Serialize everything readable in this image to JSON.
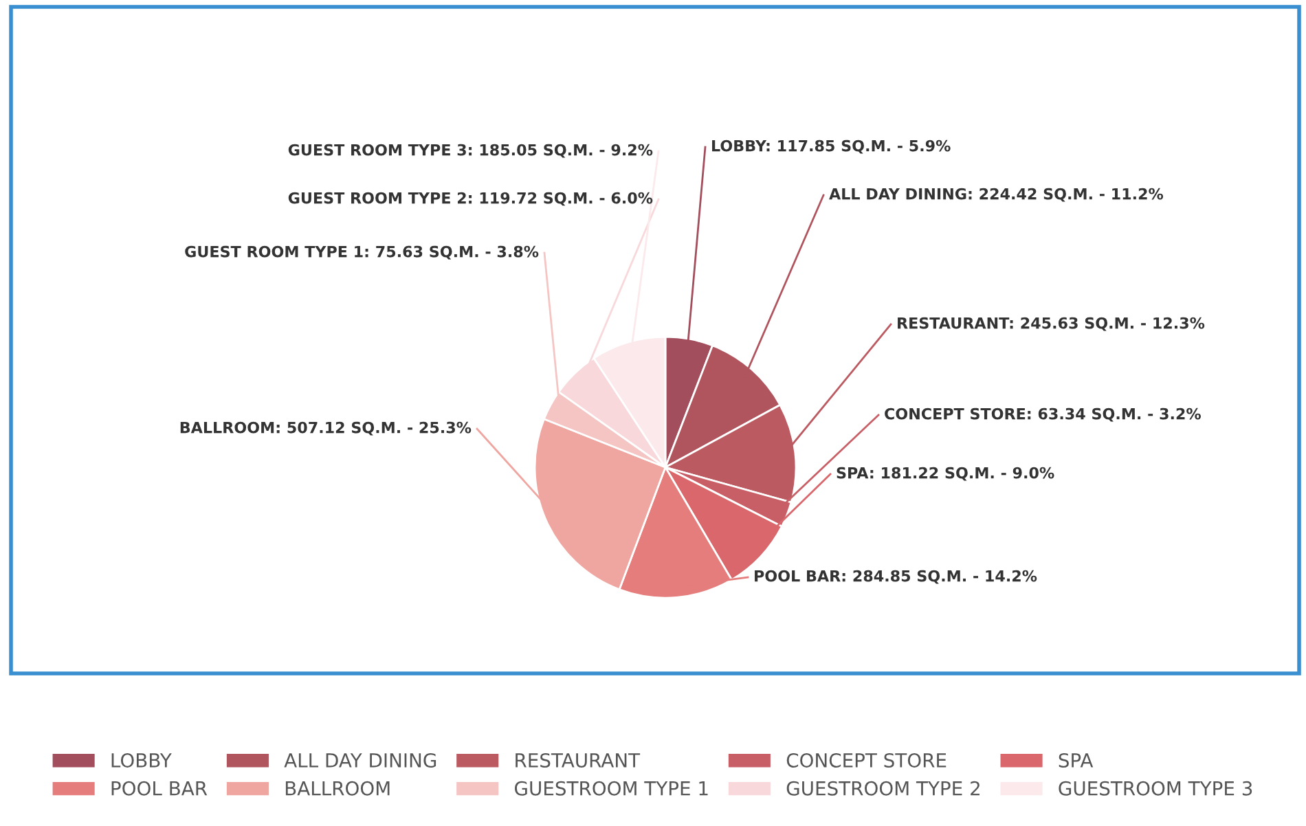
{
  "chart_data": {
    "type": "pie",
    "categories": [
      "LOBBY",
      "ALL DAY DINING",
      "RESTAURANT",
      "CONCEPT STORE",
      "SPA",
      "POOL BAR",
      "BALLROOM",
      "GUESTROOM TYPE 1",
      "GUESTROOM TYPE 2",
      "GUESTROOM TYPE 3"
    ],
    "values": [
      117.85,
      224.42,
      245.63,
      63.34,
      181.22,
      284.85,
      507.12,
      75.63,
      119.72,
      185.05
    ],
    "colors": [
      "#a34e5c",
      "#b0545e",
      "#bc5a62",
      "#c95f66",
      "#d9676b",
      "#e47d7c",
      "#efa5a0",
      "#f5c5c4",
      "#f8d8da",
      "#fbe9ec"
    ],
    "value_labels": [
      "LOBBY: 117.85 SQ.M. - 5.9%",
      "ALL DAY DINING: 224.42 SQ.M. - 11.2%",
      "RESTAURANT: 245.63 SQ.M. - 12.3%",
      "CONCEPT STORE: 63.34 SQ.M. - 3.2%",
      "SPA: 181.22 SQ.M. - 9.0%",
      "POOL BAR: 284.85 SQ.M. - 14.2%",
      "BALLROOM: 507.12 SQ.M. - 25.3%",
      "GUEST ROOM TYPE 1: 75.63 SQ.M. - 3.8%",
      "GUEST ROOM TYPE 2: 119.72 SQ.M. - 6.0%",
      "GUEST ROOM TYPE 3: 185.05 SQ.M. - 9.2%"
    ],
    "legend": "bottom"
  }
}
